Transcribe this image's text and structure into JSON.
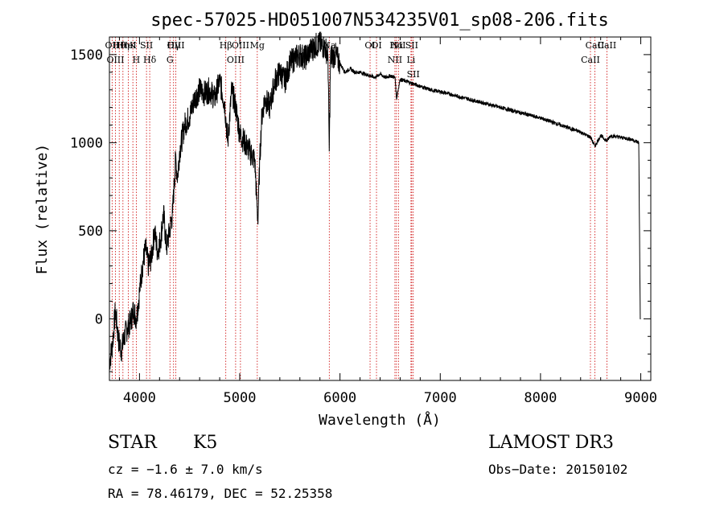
{
  "chart_data": {
    "type": "line",
    "title": "spec-57025-HD051007N534235V01_sp08-206.fits",
    "xlabel": "Wavelength (Å)",
    "ylabel": "Flux (relative)",
    "xlim": [
      3700,
      9100
    ],
    "ylim": [
      -350,
      1600
    ],
    "xticks": [
      4000,
      5000,
      6000,
      7000,
      8000,
      9000
    ],
    "yticks": [
      0,
      500,
      1000,
      1500
    ],
    "grid": false,
    "series": [
      {
        "name": "flux",
        "x": [
          3700,
          3730,
          3760,
          3790,
          3820,
          3850,
          3880,
          3910,
          3940,
          3970,
          4000,
          4030,
          4060,
          4090,
          4120,
          4150,
          4180,
          4210,
          4240,
          4270,
          4300,
          4330,
          4360,
          4380,
          4400,
          4450,
          4500,
          4550,
          4600,
          4650,
          4700,
          4750,
          4800,
          4850,
          4880,
          4920,
          4960,
          5000,
          5050,
          5100,
          5150,
          5180,
          5200,
          5220,
          5250,
          5300,
          5350,
          5400,
          5450,
          5500,
          5550,
          5600,
          5650,
          5700,
          5750,
          5800,
          5850,
          5880,
          5893,
          5905,
          5950,
          6000,
          6050,
          6100,
          6150,
          6200,
          6250,
          6300,
          6350,
          6400,
          6450,
          6500,
          6550,
          6563,
          6600,
          6650,
          6700,
          6800,
          6900,
          7000,
          7200,
          7400,
          7600,
          7800,
          8000,
          8200,
          8400,
          8500,
          8542,
          8600,
          8662,
          8700,
          8800,
          8900,
          8980,
          8995,
          9000
        ],
        "values": [
          -250,
          -150,
          50,
          -120,
          -180,
          -100,
          -50,
          -20,
          50,
          0,
          150,
          300,
          400,
          300,
          350,
          500,
          380,
          450,
          600,
          400,
          500,
          600,
          900,
          800,
          950,
          1100,
          1150,
          1250,
          1300,
          1280,
          1300,
          1250,
          1350,
          1220,
          1000,
          1300,
          1200,
          1050,
          1000,
          950,
          900,
          550,
          900,
          1150,
          1250,
          1200,
          1350,
          1400,
          1350,
          1450,
          1480,
          1500,
          1480,
          1520,
          1550,
          1560,
          1540,
          1500,
          950,
          1480,
          1500,
          1450,
          1400,
          1420,
          1400,
          1400,
          1390,
          1380,
          1370,
          1390,
          1370,
          1380,
          1370,
          1250,
          1360,
          1350,
          1340,
          1320,
          1300,
          1290,
          1260,
          1230,
          1200,
          1170,
          1140,
          1100,
          1060,
          1030,
          980,
          1040,
          1010,
          1040,
          1030,
          1020,
          1000,
          0,
          0
        ]
      }
    ],
    "lines": [
      {
        "label": "Hθ",
        "x": 3798
      },
      {
        "label": "OII",
        "x": 3727
      },
      {
        "label": "OIII",
        "x": 3760
      },
      {
        "label": "Hη",
        "x": 3835
      },
      {
        "label": "HeI",
        "x": 3889
      },
      {
        "label": "K",
        "x": 3934
      },
      {
        "label": "H",
        "x": 3968
      },
      {
        "label": "SII",
        "x": 4070
      },
      {
        "label": "Hδ",
        "x": 4102
      },
      {
        "label": "OIII",
        "x": 4363
      },
      {
        "label": "Hγ",
        "x": 4340
      },
      {
        "label": "G",
        "x": 4304
      },
      {
        "label": "Hβ",
        "x": 4861
      },
      {
        "label": "OIII",
        "x": 5007
      },
      {
        "label": "OIII",
        "x": 4959
      },
      {
        "label": "Mg",
        "x": 5175
      },
      {
        "label": "Na",
        "x": 5893
      },
      {
        "label": "OI",
        "x": 6300
      },
      {
        "label": "OI",
        "x": 6364
      },
      {
        "label": "Hα",
        "x": 6563
      },
      {
        "label": "NII",
        "x": 6548
      },
      {
        "label": "NII",
        "x": 6583
      },
      {
        "label": "SII",
        "x": 6716
      },
      {
        "label": "Li",
        "x": 6708
      },
      {
        "label": "SII",
        "x": 6731
      },
      {
        "label": "CaII",
        "x": 8542
      },
      {
        "label": "CaII",
        "x": 8498
      },
      {
        "label": "CaII",
        "x": 8662
      }
    ]
  },
  "info": {
    "object_class": "STAR",
    "subclass": "K5",
    "survey": "LAMOST DR3",
    "cz": "cz = −1.6 ± 7.0 km/s",
    "obs_date": "Obs−Date: 20150102",
    "radec": "RA =  78.46179, DEC =  52.25358"
  },
  "colors": {
    "spectrum": "#000000",
    "line_markers": "#cc0000",
    "axes": "#000000"
  }
}
